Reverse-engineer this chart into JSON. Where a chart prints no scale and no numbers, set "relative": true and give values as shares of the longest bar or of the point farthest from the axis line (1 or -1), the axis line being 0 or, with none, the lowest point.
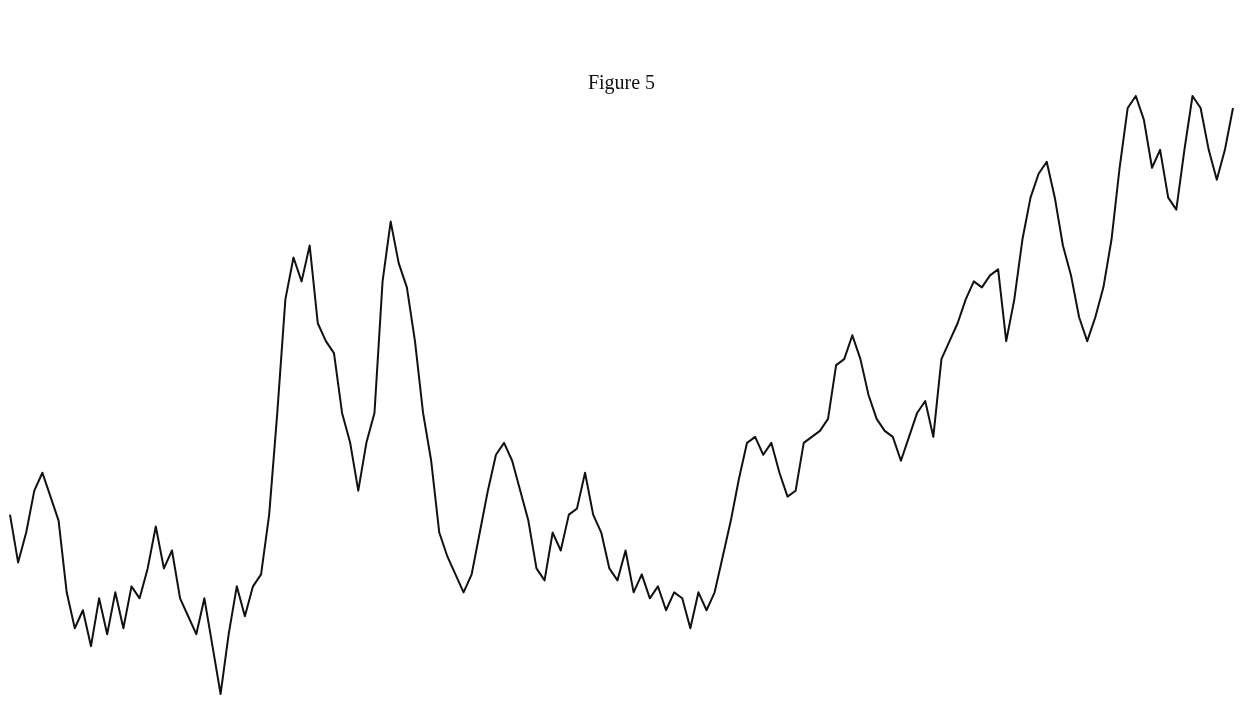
{
  "chart_data": {
    "type": "line",
    "title": "Figure 5",
    "relative": true,
    "marker": "none",
    "line_style": "solid",
    "legend": false,
    "categories": [
      null,
      null,
      null,
      null,
      null,
      null,
      null,
      null,
      null,
      null,
      null,
      null,
      null,
      null,
      null,
      null,
      null,
      null,
      null,
      null,
      null,
      null,
      null,
      null,
      null,
      null,
      null,
      null,
      null,
      null,
      null,
      null,
      null,
      null,
      null,
      null,
      null,
      null,
      null,
      null,
      null,
      null,
      null,
      null,
      null,
      null,
      null,
      null,
      null,
      null,
      null,
      null,
      null,
      null,
      null,
      null,
      null,
      null,
      null,
      null,
      null,
      null,
      null,
      null,
      null,
      null,
      null,
      null,
      null,
      null,
      null,
      null,
      null,
      null,
      null,
      null,
      null,
      null,
      null,
      null,
      null,
      null,
      null,
      null,
      null,
      null,
      null,
      null,
      null,
      null,
      null,
      null,
      null,
      null,
      null,
      null,
      null,
      null,
      null,
      null,
      null,
      null,
      null,
      null,
      null,
      null,
      null,
      null,
      null,
      null,
      null,
      null,
      null,
      null,
      null,
      null,
      null,
      null,
      null,
      null,
      null,
      null,
      null,
      null,
      null,
      null,
      null,
      null,
      null,
      null,
      null,
      null,
      null,
      null,
      null,
      null,
      null,
      null,
      null,
      null,
      null,
      null,
      null,
      null,
      null,
      null,
      null,
      null,
      null,
      null,
      null,
      null
    ],
    "series": [
      {
        "color": "#111111",
        "values": [
          0.3,
          0.22,
          0.27,
          0.34,
          0.37,
          0.33,
          0.29,
          0.17,
          0.11,
          0.14,
          0.08,
          0.16,
          0.1,
          0.17,
          0.11,
          0.18,
          0.16,
          0.21,
          0.28,
          0.21,
          0.24,
          0.16,
          0.13,
          0.1,
          0.16,
          0.08,
          0,
          0.1,
          0.18,
          0.13,
          0.18,
          0.2,
          0.3,
          0.47,
          0.66,
          0.73,
          0.69,
          0.75,
          0.62,
          0.59,
          0.57,
          0.47,
          0.42,
          0.34,
          0.42,
          0.47,
          0.69,
          0.79,
          0.72,
          0.68,
          0.59,
          0.47,
          0.39,
          0.27,
          0.23,
          0.2,
          0.17,
          0.2,
          0.27,
          0.34,
          0.4,
          0.42,
          0.39,
          0.34,
          0.29,
          0.21,
          0.19,
          0.27,
          0.24,
          0.3,
          0.31,
          0.37,
          0.3,
          0.27,
          0.21,
          0.19,
          0.24,
          0.17,
          0.2,
          0.16,
          0.18,
          0.14,
          0.17,
          0.16,
          0.11,
          0.17,
          0.14,
          0.17,
          0.23,
          0.29,
          0.36,
          0.42,
          0.43,
          0.4,
          0.42,
          0.37,
          0.33,
          0.34,
          0.42,
          0.43,
          0.44,
          0.46,
          0.55,
          0.56,
          0.6,
          0.56,
          0.5,
          0.46,
          0.44,
          0.43,
          0.39,
          0.43,
          0.47,
          0.49,
          0.43,
          0.56,
          0.59,
          0.62,
          0.66,
          0.69,
          0.68,
          0.7,
          0.71,
          0.59,
          0.66,
          0.76,
          0.83,
          0.87,
          0.89,
          0.83,
          0.75,
          0.7,
          0.63,
          0.59,
          0.63,
          0.68,
          0.76,
          0.88,
          0.98,
          1,
          0.96,
          0.88,
          0.91,
          0.83,
          0.81,
          0.91,
          1,
          0.98,
          0.91,
          0.86,
          0.91,
          0.98
        ]
      }
    ]
  }
}
